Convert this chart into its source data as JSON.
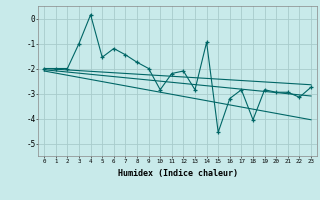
{
  "xlabel": "Humidex (Indice chaleur)",
  "bg_color": "#c8eaea",
  "grid_color": "#a8cccc",
  "line_color": "#006666",
  "xlim": [
    -0.5,
    23.5
  ],
  "ylim": [
    -5.5,
    0.5
  ],
  "yticks": [
    0,
    -1,
    -2,
    -3,
    -4,
    -5
  ],
  "scatter_x": [
    0,
    1,
    2,
    3,
    4,
    5,
    6,
    7,
    8,
    9,
    10,
    11,
    12,
    13,
    14,
    15,
    16,
    17,
    18,
    19,
    20,
    21,
    22,
    23
  ],
  "scatter_y": [
    -2.0,
    -2.0,
    -2.0,
    -1.0,
    0.15,
    -1.55,
    -1.2,
    -1.45,
    -1.75,
    -2.0,
    -2.85,
    -2.2,
    -2.1,
    -2.85,
    -0.95,
    -4.55,
    -3.2,
    -2.85,
    -4.05,
    -2.85,
    -2.95,
    -2.95,
    -3.15,
    -2.75
  ],
  "trend_lines": [
    {
      "x": [
        0,
        23
      ],
      "y": [
        -2.0,
        -2.65
      ]
    },
    {
      "x": [
        0,
        23
      ],
      "y": [
        -2.05,
        -3.1
      ]
    },
    {
      "x": [
        0,
        23
      ],
      "y": [
        -2.1,
        -4.05
      ]
    }
  ]
}
